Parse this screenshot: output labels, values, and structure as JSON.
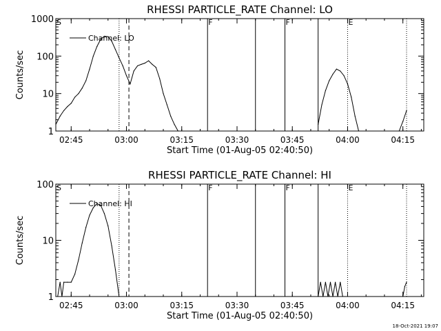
{
  "chart_data": [
    {
      "type": "line",
      "title": "RHESSI PARTICLE_RATE Channel: LO",
      "xlabel": "Start Time (01-Aug-05 02:40:50)",
      "ylabel": "Counts/sec",
      "yscale": "log",
      "ylim": [
        1,
        1000
      ],
      "xlim": [
        "02:40:50",
        "04:20:40"
      ],
      "x_ticks": [
        "02:45",
        "03:00",
        "03:15",
        "03:30",
        "03:45",
        "04:00",
        "04:15"
      ],
      "y_ticks": [
        "1",
        "10",
        "100",
        "1000"
      ],
      "legend": {
        "position": "top-left",
        "entries": [
          "Channel: LO"
        ]
      },
      "flags": [
        {
          "label": "S",
          "time": "02:40:50"
        },
        {
          "label": "F",
          "time": "03:22:00"
        },
        {
          "label": "F",
          "time": "03:43:00"
        },
        {
          "label": "E",
          "time": "04:00:00"
        }
      ],
      "vlines_solid": [
        "03:22:00",
        "03:35:00",
        "03:43:00",
        "03:52:00"
      ],
      "vlines_dotted": [
        "02:58:00",
        "04:00:00",
        "04:16:00"
      ],
      "vlines_dashed": [
        "03:00:40"
      ],
      "series": [
        {
          "name": "Channel: LO",
          "segments": [
            {
              "x": [
                "02:40:50",
                "02:42:00",
                "02:43:00",
                "02:44:00",
                "02:45:00",
                "02:46:00",
                "02:47:00",
                "02:48:00",
                "02:49:00",
                "02:50:00",
                "02:51:00",
                "02:52:00",
                "02:53:00",
                "02:54:00",
                "02:55:00",
                "02:56:00",
                "02:57:00",
                "02:58:00",
                "02:59:00",
                "03:00:00",
                "03:01:00",
                "03:02:00",
                "03:03:00",
                "03:04:00",
                "03:05:00",
                "03:06:00",
                "03:07:00",
                "03:08:00",
                "03:09:00",
                "03:10:00",
                "03:11:00",
                "03:12:00",
                "03:13:00",
                "03:14:00"
              ],
              "y": [
                1.5,
                2.5,
                3.5,
                4.5,
                5.5,
                8,
                10,
                14,
                22,
                45,
                100,
                180,
                280,
                340,
                330,
                250,
                150,
                90,
                55,
                30,
                18,
                40,
                55,
                60,
                65,
                75,
                60,
                50,
                25,
                10,
                5,
                2.5,
                1.5,
                1
              ]
            },
            {
              "x": [
                "03:52:00",
                "03:53:00",
                "03:54:00",
                "03:55:00",
                "03:56:00",
                "03:57:00",
                "03:58:00",
                "03:59:00",
                "04:00:00",
                "04:01:00",
                "04:02:00",
                "04:03:00"
              ],
              "y": [
                1.5,
                5,
                12,
                22,
                33,
                45,
                40,
                30,
                18,
                8,
                2.5,
                1
              ]
            },
            {
              "x": [
                "04:14:00",
                "04:15:00",
                "04:16:00"
              ],
              "y": [
                1,
                1.8,
                3.5
              ]
            }
          ]
        }
      ]
    },
    {
      "type": "line",
      "title": "RHESSI PARTICLE_RATE Channel: HI",
      "xlabel": "Start Time (01-Aug-05 02:40:50)",
      "ylabel": "Counts/sec",
      "yscale": "log",
      "ylim": [
        1,
        100
      ],
      "xlim": [
        "02:40:50",
        "04:20:40"
      ],
      "x_ticks": [
        "02:45",
        "03:00",
        "03:15",
        "03:30",
        "03:45",
        "04:00",
        "04:15"
      ],
      "y_ticks": [
        "1",
        "10",
        "100"
      ],
      "legend": {
        "position": "top-left",
        "entries": [
          "Channel: HI"
        ]
      },
      "flags": [
        {
          "label": "S",
          "time": "02:40:50"
        },
        {
          "label": "F",
          "time": "03:22:00"
        },
        {
          "label": "F",
          "time": "03:43:00"
        },
        {
          "label": "E",
          "time": "04:00:00"
        }
      ],
      "vlines_solid": [
        "03:22:00",
        "03:35:00",
        "03:43:00",
        "03:52:00"
      ],
      "vlines_dotted": [
        "02:58:00",
        "04:00:00",
        "04:16:00"
      ],
      "vlines_dashed": [
        "03:00:40"
      ],
      "series": [
        {
          "name": "Channel: HI",
          "segments": [
            {
              "x": [
                "02:40:50",
                "02:41:20",
                "02:42:00",
                "02:42:30",
                "02:43:00",
                "02:44:00",
                "02:45:00",
                "02:46:00",
                "02:47:00",
                "02:48:00",
                "02:49:00",
                "02:50:00",
                "02:51:00",
                "02:52:00",
                "02:53:00",
                "02:54:00",
                "02:55:00",
                "02:56:00",
                "02:57:00",
                "02:58:00"
              ],
              "y": [
                1,
                1,
                1.8,
                1,
                1.8,
                1.8,
                1.8,
                2.5,
                4.5,
                9,
                17,
                28,
                38,
                45,
                42,
                30,
                18,
                8,
                3,
                1
              ]
            },
            {
              "x": [
                "03:52:00",
                "03:52:40",
                "03:53:20",
                "03:54:00",
                "03:54:40",
                "03:55:20",
                "03:56:00",
                "03:56:40",
                "03:57:20",
                "03:58:00",
                "03:58:40",
                "03:59:20"
              ],
              "y": [
                1,
                1.8,
                1,
                1.8,
                1,
                1.8,
                1,
                1.8,
                1,
                1.8,
                1,
                1
              ]
            },
            {
              "x": [
                "04:15:00",
                "04:15:30",
                "04:16:00"
              ],
              "y": [
                1,
                1.5,
                1.8
              ]
            }
          ]
        }
      ]
    }
  ],
  "footer": {
    "timestamp": "18-Oct-2021 19:07"
  }
}
